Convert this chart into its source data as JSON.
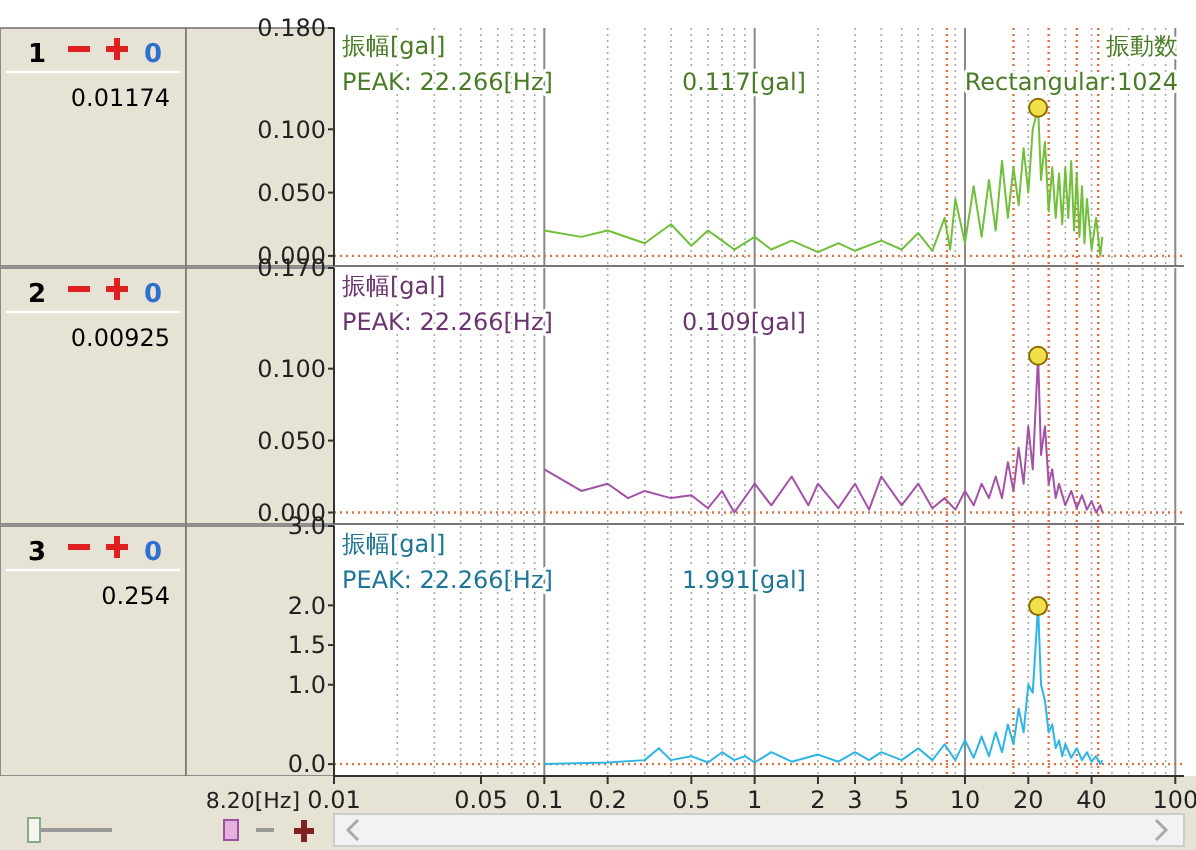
{
  "chart_data": [
    {
      "type": "line",
      "ylabel": "振幅[gal]",
      "xlabel": "振動数",
      "annotations": [
        "1",
        "0",
        "0.01174",
        "PEAK:  22.266[Hz]",
        "0.117[gal]",
        "Rectangular:1024"
      ],
      "xlim": [
        0.01,
        110
      ],
      "ylim": [
        -0.008,
        0.18
      ],
      "log": "x",
      "grid": "x",
      "tick_labels": "y",
      "xticks": [
        0.01,
        {
          "value": 0.02,
          "label": null
        },
        {
          "value": 0.03,
          "label": null
        },
        {
          "value": 0.04,
          "label": null
        },
        0.05,
        {
          "value": 0.06,
          "label": null
        },
        {
          "value": 0.07,
          "label": null
        },
        {
          "value": 0.08,
          "label": null
        },
        {
          "value": 0.09,
          "label": null
        },
        0.1,
        0.2,
        {
          "value": 0.3,
          "label": null
        },
        {
          "value": 0.4,
          "label": null
        },
        0.5,
        {
          "value": 0.6,
          "label": null
        },
        {
          "value": 0.7,
          "label": null
        },
        {
          "value": 0.8,
          "label": null
        },
        {
          "value": 0.9,
          "label": null
        },
        1,
        2,
        3,
        {
          "value": 4,
          "label": null
        },
        5,
        {
          "value": 6,
          "label": null
        },
        {
          "value": 7,
          "label": null
        },
        {
          "value": 9,
          "label": null
        },
        10,
        20,
        {
          "value": 30,
          "label": null
        },
        40,
        {
          "value": 50,
          "label": null
        },
        {
          "value": 60,
          "label": null
        },
        {
          "value": 70,
          "label": null
        },
        {
          "value": 80,
          "label": null
        },
        {
          "value": 90,
          "label": null
        },
        100
      ],
      "yticks": [
        {
          "value": 0,
          "label": "0.000"
        },
        {
          "value": 0.05,
          "label": "0.050"
        },
        {
          "value": 0.1,
          "label": "0.100"
        },
        {
          "value": 0.18,
          "label": "0.180"
        }
      ],
      "ref_lines": [
        {
          "axis": "y",
          "value": 0,
          "color": "#e07040",
          "line_style": "dotted"
        },
        {
          "axis": "x",
          "value": 8.2,
          "color": "#e07040",
          "line_style": "dotted"
        },
        {
          "axis": "x",
          "value": 17,
          "color": "#e07040",
          "line_style": "dotted"
        },
        {
          "axis": "x",
          "value": 25,
          "color": "#e07040",
          "line_style": "dotted"
        },
        {
          "axis": "x",
          "value": 34,
          "color": "#e07040",
          "line_style": "dotted"
        },
        {
          "axis": "x",
          "value": 43,
          "color": "#e07040",
          "line_style": "dotted"
        }
      ],
      "series": [
        {
          "type": "line",
          "color": "#72bf3c",
          "x": [
            0.1,
            0.15,
            0.2,
            0.3,
            0.4,
            0.5,
            0.6,
            0.7,
            0.8,
            1,
            1.2,
            1.5,
            2,
            2.5,
            3,
            4,
            5,
            6,
            7,
            8,
            8.5,
            9,
            10,
            11,
            12,
            13,
            14,
            15,
            16,
            17,
            18,
            19,
            20,
            21,
            22.266,
            23,
            24,
            25,
            26,
            27,
            28,
            29,
            30,
            31,
            32,
            33,
            34,
            35,
            36,
            37,
            38,
            40,
            42,
            44,
            45
          ],
          "values": [
            0.02,
            0.015,
            0.02,
            0.01,
            0.025,
            0.008,
            0.02,
            0.012,
            0.005,
            0.015,
            0.005,
            0.012,
            0.003,
            0.01,
            0.004,
            0.012,
            0.005,
            0.018,
            0.004,
            0.03,
            0.005,
            0.045,
            0.01,
            0.055,
            0.015,
            0.06,
            0.02,
            0.075,
            0.03,
            0.07,
            0.04,
            0.085,
            0.05,
            0.1,
            0.117,
            0.06,
            0.09,
            0.035,
            0.07,
            0.03,
            0.065,
            0.025,
            0.07,
            0.03,
            0.075,
            0.02,
            0.065,
            0.015,
            0.055,
            0.01,
            0.045,
            0.005,
            0.03,
            0,
            0.015
          ]
        },
        {
          "type": "scatter",
          "color": "#f2e04a",
          "marker": "circle",
          "x": [
            22.266
          ],
          "values": [
            0.117
          ]
        }
      ]
    },
    {
      "type": "line",
      "ylabel": "振幅[gal]",
      "annotations": [
        "2",
        "0",
        "0.00925",
        "PEAK:  22.266[Hz]",
        "0.109[gal]"
      ],
      "xlim": [
        0.01,
        110
      ],
      "ylim": [
        -0.008,
        0.17
      ],
      "log": "x",
      "grid": "x",
      "tick_labels": "y",
      "xticks": [
        0.01,
        {
          "value": 0.02,
          "label": null
        },
        {
          "value": 0.03,
          "label": null
        },
        {
          "value": 0.04,
          "label": null
        },
        0.05,
        {
          "value": 0.06,
          "label": null
        },
        {
          "value": 0.07,
          "label": null
        },
        {
          "value": 0.08,
          "label": null
        },
        {
          "value": 0.09,
          "label": null
        },
        0.1,
        0.2,
        {
          "value": 0.3,
          "label": null
        },
        {
          "value": 0.4,
          "label": null
        },
        0.5,
        {
          "value": 0.6,
          "label": null
        },
        {
          "value": 0.7,
          "label": null
        },
        {
          "value": 0.8,
          "label": null
        },
        {
          "value": 0.9,
          "label": null
        },
        1,
        2,
        3,
        {
          "value": 4,
          "label": null
        },
        5,
        {
          "value": 6,
          "label": null
        },
        {
          "value": 7,
          "label": null
        },
        {
          "value": 9,
          "label": null
        },
        10,
        20,
        {
          "value": 30,
          "label": null
        },
        40,
        {
          "value": 50,
          "label": null
        },
        {
          "value": 60,
          "label": null
        },
        {
          "value": 70,
          "label": null
        },
        {
          "value": 80,
          "label": null
        },
        {
          "value": 90,
          "label": null
        },
        100
      ],
      "yticks": [
        {
          "value": 0,
          "label": "0.000"
        },
        {
          "value": 0.05,
          "label": "0.050"
        },
        {
          "value": 0.1,
          "label": "0.100"
        },
        {
          "value": 0.17,
          "label": "0.170"
        }
      ],
      "ref_lines": [
        {
          "axis": "y",
          "value": 0,
          "color": "#e07040",
          "line_style": "dotted"
        },
        {
          "axis": "x",
          "value": 8.2,
          "color": "#e07040",
          "line_style": "dotted"
        },
        {
          "axis": "x",
          "value": 17,
          "color": "#e07040",
          "line_style": "dotted"
        },
        {
          "axis": "x",
          "value": 25,
          "color": "#e07040",
          "line_style": "dotted"
        },
        {
          "axis": "x",
          "value": 34,
          "color": "#e07040",
          "line_style": "dotted"
        },
        {
          "axis": "x",
          "value": 43,
          "color": "#e07040",
          "line_style": "dotted"
        }
      ],
      "series": [
        {
          "type": "line",
          "color": "#a352a8",
          "x": [
            0.1,
            0.15,
            0.2,
            0.25,
            0.3,
            0.4,
            0.5,
            0.6,
            0.7,
            0.8,
            1,
            1.2,
            1.5,
            1.8,
            2,
            2.5,
            3,
            3.5,
            4,
            5,
            6,
            7,
            8,
            9,
            10,
            11,
            12,
            13,
            14,
            15,
            16,
            17,
            18,
            19,
            20,
            21,
            22.266,
            23,
            24,
            25,
            26,
            27,
            28,
            30,
            32,
            34,
            36,
            38,
            40,
            42,
            44,
            45
          ],
          "values": [
            0.03,
            0.015,
            0.02,
            0.01,
            0.015,
            0.01,
            0.012,
            0.003,
            0.015,
            0,
            0.02,
            0.005,
            0.025,
            0.005,
            0.02,
            0.003,
            0.02,
            0.002,
            0.025,
            0.005,
            0.02,
            0.003,
            0.01,
            0.002,
            0.015,
            0.005,
            0.02,
            0.01,
            0.025,
            0.01,
            0.035,
            0.015,
            0.045,
            0.02,
            0.06,
            0.03,
            0.109,
            0.04,
            0.06,
            0.02,
            0.03,
            0.01,
            0.02,
            0.005,
            0.015,
            0.003,
            0.012,
            0.002,
            0.008,
            0,
            0.005,
            0
          ]
        },
        {
          "type": "scatter",
          "color": "#f2e04a",
          "marker": "circle",
          "x": [
            22.266
          ],
          "values": [
            0.109
          ]
        }
      ]
    },
    {
      "type": "line",
      "ylabel": "振幅[gal]",
      "annotations": [
        "3",
        "0",
        "0.254",
        "PEAK:  22.266[Hz]",
        "1.991[gal]",
        "8.20[Hz]"
      ],
      "xlim": [
        0.01,
        110
      ],
      "ylim": [
        -0.15,
        3.0
      ],
      "log": "x",
      "grid": "x",
      "xticks": [
        0.01,
        {
          "value": 0.02,
          "label": null
        },
        {
          "value": 0.03,
          "label": null
        },
        {
          "value": 0.04,
          "label": null
        },
        0.05,
        {
          "value": 0.06,
          "label": null
        },
        {
          "value": 0.07,
          "label": null
        },
        {
          "value": 0.08,
          "label": null
        },
        {
          "value": 0.09,
          "label": null
        },
        0.1,
        0.2,
        {
          "value": 0.3,
          "label": null
        },
        {
          "value": 0.4,
          "label": null
        },
        0.5,
        {
          "value": 0.6,
          "label": null
        },
        {
          "value": 0.7,
          "label": null
        },
        {
          "value": 0.8,
          "label": null
        },
        {
          "value": 0.9,
          "label": null
        },
        1,
        2,
        3,
        {
          "value": 4,
          "label": null
        },
        5,
        {
          "value": 6,
          "label": null
        },
        {
          "value": 7,
          "label": null
        },
        {
          "value": 9,
          "label": null
        },
        10,
        20,
        {
          "value": 30,
          "label": null
        },
        40,
        {
          "value": 50,
          "label": null
        },
        {
          "value": 60,
          "label": null
        },
        {
          "value": 70,
          "label": null
        },
        {
          "value": 80,
          "label": null
        },
        {
          "value": 90,
          "label": null
        },
        100
      ],
      "yticks": [
        {
          "value": 0,
          "label": "0.0"
        },
        {
          "value": 1,
          "label": "1.0"
        },
        {
          "value": 1.5,
          "label": "1.5"
        },
        {
          "value": 2,
          "label": "2.0"
        },
        {
          "value": 3,
          "label": "3.0"
        }
      ],
      "ref_lines": [
        {
          "axis": "y",
          "value": 0,
          "color": "#e07040",
          "line_style": "dotted"
        },
        {
          "axis": "x",
          "value": 8.2,
          "color": "#e07040",
          "line_style": "dotted"
        },
        {
          "axis": "x",
          "value": 17,
          "color": "#e07040",
          "line_style": "dotted"
        },
        {
          "axis": "x",
          "value": 25,
          "color": "#e07040",
          "line_style": "dotted"
        },
        {
          "axis": "x",
          "value": 34,
          "color": "#e07040",
          "line_style": "dotted"
        },
        {
          "axis": "x",
          "value": 43,
          "color": "#e07040",
          "line_style": "dotted"
        }
      ],
      "series": [
        {
          "type": "line",
          "color": "#2fb4e6",
          "x": [
            0.1,
            0.2,
            0.3,
            0.35,
            0.4,
            0.5,
            0.6,
            0.7,
            0.8,
            0.9,
            1,
            1.2,
            1.5,
            2,
            2.5,
            3,
            3.5,
            4,
            5,
            6,
            7,
            8,
            9,
            10,
            11,
            12,
            13,
            14,
            15,
            16,
            17,
            18,
            19,
            20,
            21,
            22.266,
            23,
            24,
            25,
            26,
            27,
            28,
            29,
            30,
            32,
            34,
            36,
            38,
            40,
            42,
            44,
            45
          ],
          "values": [
            0,
            0.02,
            0.05,
            0.2,
            0.05,
            0.1,
            0.02,
            0.15,
            0.05,
            0.1,
            0.02,
            0.15,
            0.03,
            0.12,
            0.03,
            0.15,
            0.05,
            0.15,
            0.05,
            0.2,
            0.05,
            0.25,
            0.05,
            0.3,
            0.08,
            0.35,
            0.1,
            0.4,
            0.15,
            0.5,
            0.25,
            0.7,
            0.4,
            1.0,
            0.9,
            1.991,
            1.0,
            0.8,
            0.4,
            0.5,
            0.2,
            0.3,
            0.1,
            0.25,
            0.08,
            0.2,
            0.05,
            0.15,
            0.03,
            0.1,
            0,
            0.05
          ]
        },
        {
          "type": "scatter",
          "color": "#f2e04a",
          "marker": "circle",
          "x": [
            22.266
          ],
          "values": [
            1.991
          ]
        }
      ]
    }
  ]
}
